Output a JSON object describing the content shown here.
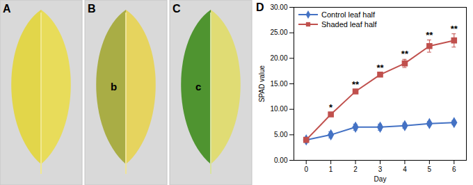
{
  "panels": [
    {
      "label": "A"
    },
    {
      "label": "B",
      "mark": "b"
    },
    {
      "label": "C",
      "mark": "c"
    }
  ],
  "chart_data": {
    "type": "line",
    "panel_label": "D",
    "x_label": "Day",
    "y_label": "SPAD value",
    "x": [
      0,
      1,
      2,
      3,
      4,
      5,
      6
    ],
    "xlim": [
      -0.5,
      6.5
    ],
    "xticks": [
      0,
      1,
      2,
      3,
      4,
      5,
      6
    ],
    "ylim": [
      0,
      30
    ],
    "yticks": [
      {
        "value": 0,
        "label": "0.00"
      },
      {
        "value": 5,
        "label": "5.00"
      },
      {
        "value": 10,
        "label": "10.00"
      },
      {
        "value": 15,
        "label": "15.00"
      },
      {
        "value": 20,
        "label": "20.00"
      },
      {
        "value": 25,
        "label": "25.00"
      },
      {
        "value": 30,
        "label": "30.00"
      }
    ],
    "legend": "top-left",
    "series": [
      {
        "name": "Control leaf half",
        "color": "#4472c4",
        "marker": "diamond",
        "values": [
          4.0,
          5.0,
          6.5,
          6.5,
          6.8,
          7.2,
          7.4
        ],
        "error": [
          0.2,
          0.6,
          0.6,
          0.6,
          0.5,
          0.4,
          0.4
        ]
      },
      {
        "name": "Shaded leaf half",
        "color": "#c0504d",
        "marker": "square",
        "values": [
          4.0,
          9.0,
          13.5,
          16.8,
          19.0,
          22.4,
          23.5
        ],
        "error": [
          0.2,
          0.4,
          0.4,
          0.3,
          0.8,
          1.2,
          1.3
        ],
        "significance": [
          null,
          "*",
          "**",
          "**",
          "**",
          "**",
          "**"
        ]
      }
    ]
  }
}
